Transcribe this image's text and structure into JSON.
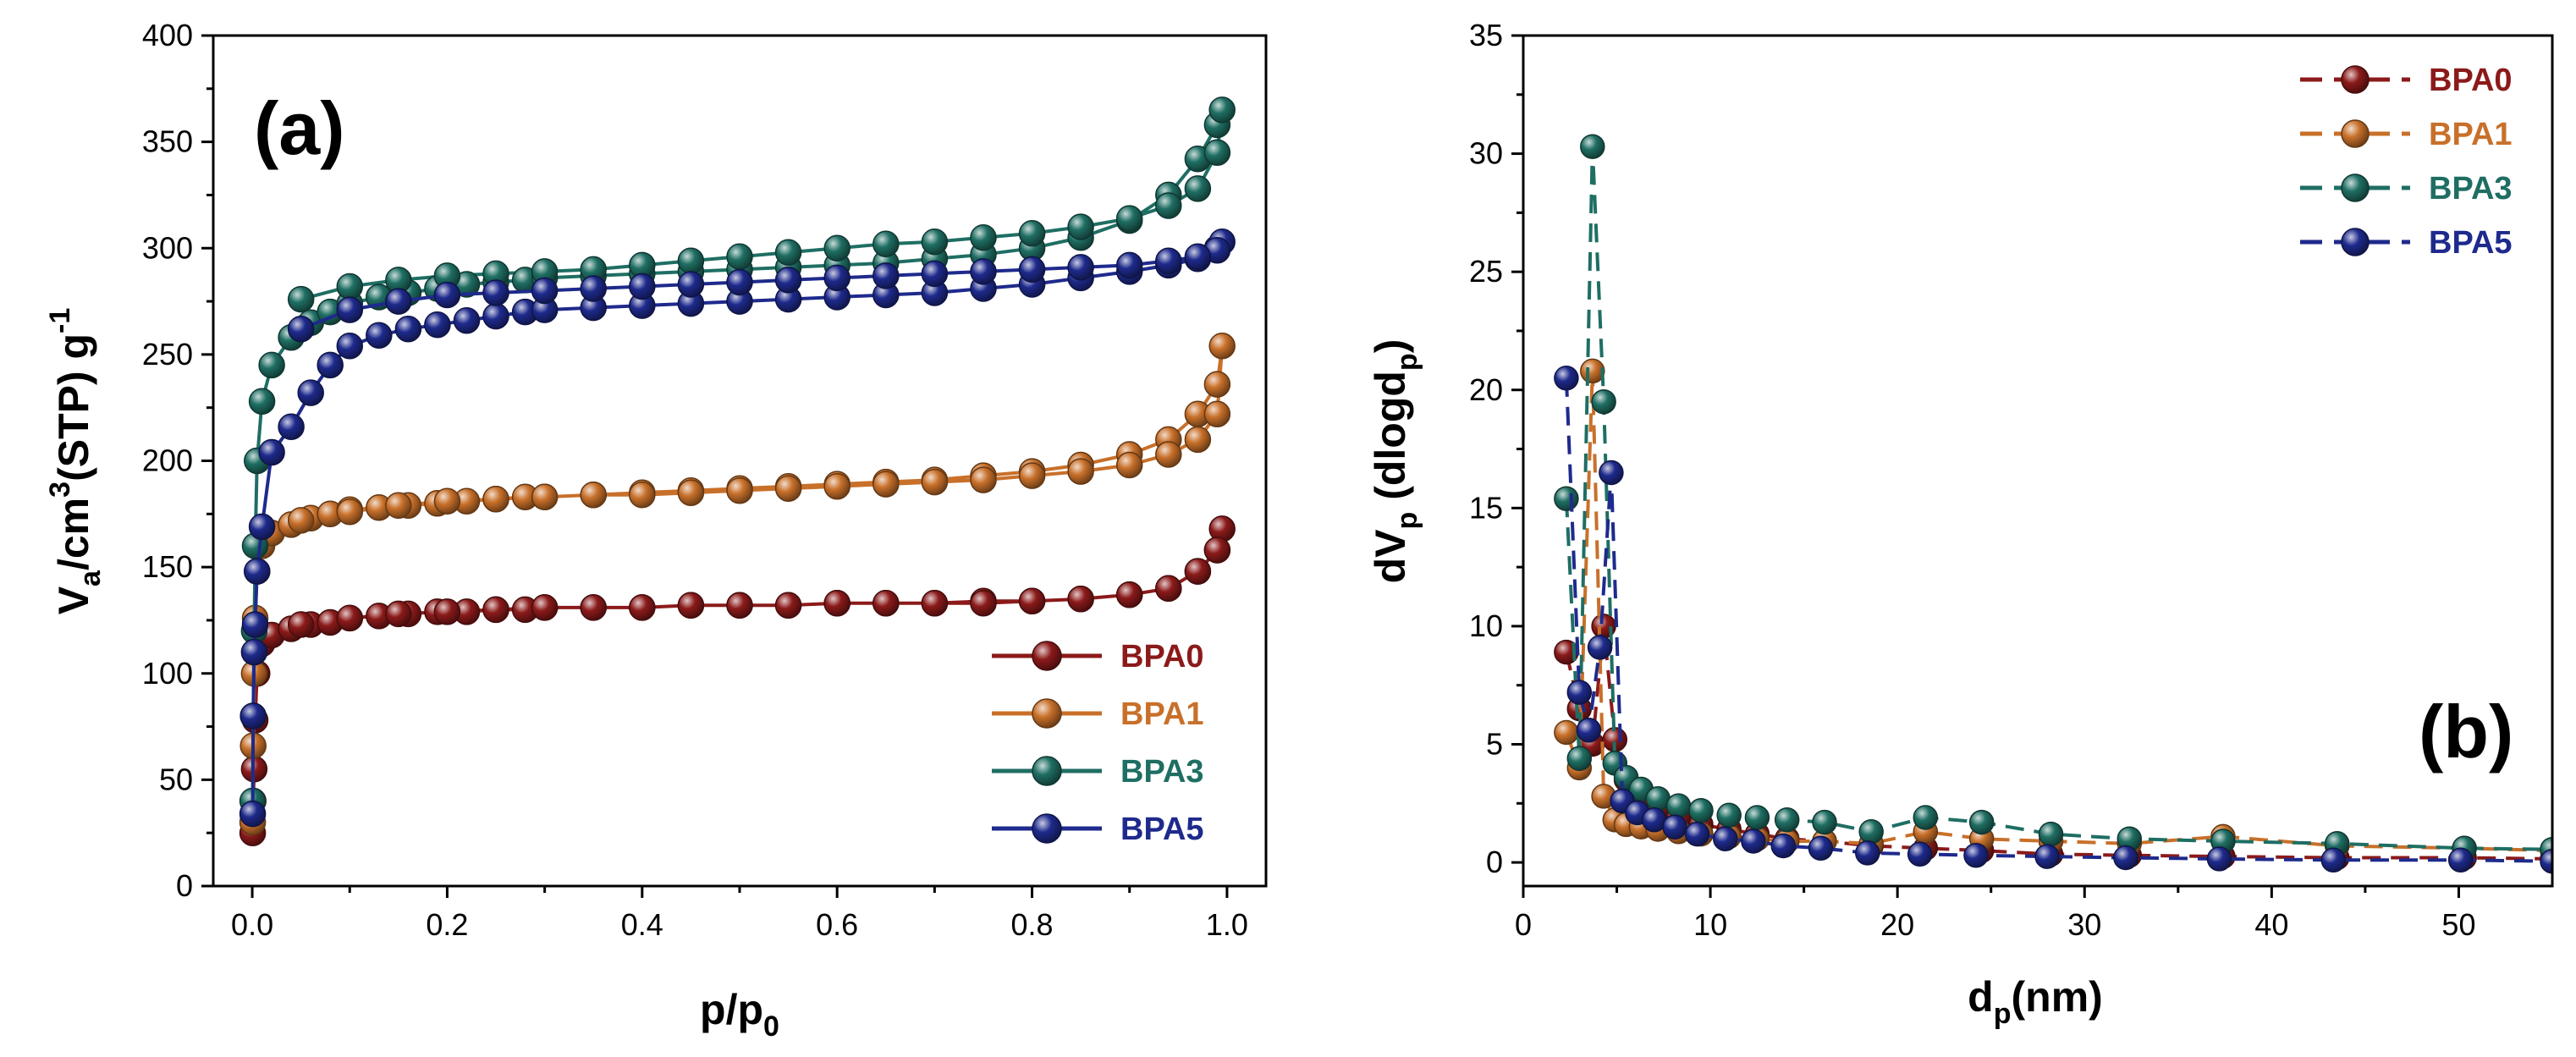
{
  "chart_data": [
    {
      "type": "line",
      "panel_label": "(a)",
      "xlabel": {
        "main": "p/p",
        "sub": "0"
      },
      "ylabel": {
        "p1": "V",
        "sub": "a",
        "p2": "/cm",
        "sup": "3",
        "p3": "(STP) g",
        "sup2": "-1"
      },
      "xlim": [
        -0.04,
        1.04
      ],
      "ylim": [
        0,
        400
      ],
      "xticks": [
        0.0,
        0.2,
        0.4,
        0.6,
        0.8,
        1.0
      ],
      "xtick_labels": [
        "0.0",
        "0.2",
        "0.4",
        "0.6",
        "0.8",
        "1.0"
      ],
      "yticks": [
        0,
        50,
        100,
        150,
        200,
        250,
        300,
        350,
        400
      ],
      "ytick_labels": [
        "0",
        "50",
        "100",
        "150",
        "200",
        "250",
        "300",
        "350",
        "400"
      ],
      "legend_position": "lower-right",
      "series": [
        {
          "name": "BPA0",
          "color": "#8B1A1A",
          "x": [
            0.0005,
            0.001,
            0.002,
            0.003,
            0.005,
            0.01,
            0.02,
            0.04,
            0.06,
            0.08,
            0.1,
            0.13,
            0.16,
            0.19,
            0.22,
            0.25,
            0.28,
            0.3,
            0.35,
            0.4,
            0.45,
            0.5,
            0.55,
            0.6,
            0.65,
            0.7,
            0.75,
            0.8,
            0.85,
            0.9,
            0.94,
            0.97,
            0.99,
            0.995,
            0.99,
            0.97,
            0.94,
            0.9,
            0.85,
            0.8,
            0.75,
            0.7,
            0.65,
            0.6,
            0.55,
            0.5,
            0.45,
            0.4,
            0.35,
            0.3,
            0.25,
            0.2,
            0.15,
            0.1,
            0.05
          ],
          "y": [
            25,
            40,
            55,
            78,
            100,
            114,
            118,
            121,
            123,
            124,
            126,
            127,
            128,
            129,
            129,
            130,
            130,
            131,
            131,
            131,
            132,
            132,
            132,
            133,
            133,
            133,
            134,
            134,
            135,
            137,
            140,
            148,
            158,
            168,
            158,
            148,
            140,
            137,
            135,
            134,
            133,
            133,
            133,
            133,
            132,
            132,
            132,
            131,
            131,
            131,
            130,
            129,
            128,
            126,
            123
          ]
        },
        {
          "name": "BPA1",
          "color": "#C8702A",
          "x": [
            0.0005,
            0.001,
            0.002,
            0.003,
            0.005,
            0.01,
            0.02,
            0.04,
            0.06,
            0.08,
            0.1,
            0.13,
            0.16,
            0.19,
            0.22,
            0.25,
            0.28,
            0.3,
            0.35,
            0.4,
            0.45,
            0.5,
            0.55,
            0.6,
            0.65,
            0.7,
            0.75,
            0.8,
            0.85,
            0.9,
            0.94,
            0.97,
            0.99,
            0.995,
            0.99,
            0.97,
            0.94,
            0.9,
            0.85,
            0.8,
            0.75,
            0.7,
            0.65,
            0.6,
            0.55,
            0.5,
            0.45,
            0.4,
            0.35,
            0.3,
            0.25,
            0.2,
            0.15,
            0.1,
            0.05
          ],
          "y": [
            30,
            66,
            100,
            126,
            148,
            160,
            166,
            170,
            173,
            175,
            177,
            178,
            179,
            180,
            181,
            182,
            183,
            183,
            184,
            185,
            186,
            187,
            188,
            189,
            190,
            191,
            193,
            195,
            198,
            203,
            210,
            222,
            236,
            254,
            222,
            210,
            203,
            198,
            195,
            193,
            191,
            190,
            189,
            188,
            187,
            186,
            185,
            184,
            184,
            183,
            182,
            181,
            179,
            176,
            172
          ]
        },
        {
          "name": "BPA3",
          "color": "#1F6E63",
          "x": [
            0.0005,
            0.001,
            0.002,
            0.003,
            0.005,
            0.01,
            0.02,
            0.04,
            0.06,
            0.08,
            0.1,
            0.13,
            0.16,
            0.19,
            0.22,
            0.25,
            0.28,
            0.3,
            0.35,
            0.4,
            0.45,
            0.5,
            0.55,
            0.6,
            0.65,
            0.7,
            0.75,
            0.8,
            0.85,
            0.9,
            0.94,
            0.97,
            0.99,
            0.995,
            0.99,
            0.97,
            0.94,
            0.9,
            0.85,
            0.8,
            0.75,
            0.7,
            0.65,
            0.6,
            0.55,
            0.5,
            0.45,
            0.4,
            0.35,
            0.3,
            0.25,
            0.2,
            0.15,
            0.1,
            0.05
          ],
          "y": [
            40,
            80,
            120,
            160,
            200,
            228,
            245,
            258,
            265,
            270,
            274,
            277,
            279,
            281,
            283,
            284,
            285,
            286,
            287,
            288,
            289,
            290,
            291,
            292,
            293,
            295,
            297,
            300,
            305,
            313,
            325,
            342,
            358,
            365,
            345,
            328,
            320,
            314,
            310,
            307,
            305,
            303,
            302,
            300,
            298,
            296,
            294,
            292,
            290,
            289,
            288,
            287,
            285,
            282,
            276
          ]
        },
        {
          "name": "BPA5",
          "color": "#1E2A8C",
          "x": [
            0.0005,
            0.001,
            0.002,
            0.003,
            0.005,
            0.01,
            0.02,
            0.04,
            0.06,
            0.08,
            0.1,
            0.13,
            0.16,
            0.19,
            0.22,
            0.25,
            0.28,
            0.3,
            0.35,
            0.4,
            0.45,
            0.5,
            0.55,
            0.6,
            0.65,
            0.7,
            0.75,
            0.8,
            0.85,
            0.9,
            0.94,
            0.97,
            0.99,
            0.995,
            0.99,
            0.97,
            0.94,
            0.9,
            0.85,
            0.8,
            0.75,
            0.7,
            0.65,
            0.6,
            0.55,
            0.5,
            0.45,
            0.4,
            0.35,
            0.3,
            0.25,
            0.2,
            0.15,
            0.1,
            0.05
          ],
          "y": [
            34,
            80,
            110,
            123,
            148,
            169,
            204,
            216,
            232,
            245,
            254,
            259,
            262,
            264,
            266,
            268,
            270,
            271,
            272,
            273,
            274,
            275,
            276,
            277,
            278,
            279,
            281,
            283,
            286,
            289,
            292,
            295,
            300,
            303,
            299,
            296,
            294,
            292,
            291,
            290,
            289,
            288,
            287,
            286,
            285,
            284,
            283,
            282,
            281,
            280,
            279,
            278,
            275,
            271,
            262
          ]
        }
      ]
    },
    {
      "type": "line",
      "panel_label": "(b)",
      "xlabel": {
        "main": "d",
        "sub": "p",
        "rest": "(nm)"
      },
      "ylabel": {
        "p1": "dV",
        "sub": "p",
        "p2": " (dlogd",
        "sub2": "p",
        "p3": ")"
      },
      "xlim": [
        0,
        55
      ],
      "ylim": [
        -1,
        35
      ],
      "xticks": [
        0,
        10,
        20,
        30,
        40,
        50
      ],
      "xtick_labels": [
        "0",
        "10",
        "20",
        "30",
        "40",
        "50"
      ],
      "yticks": [
        0,
        5,
        10,
        15,
        20,
        25,
        30,
        35
      ],
      "ytick_labels": [
        "0",
        "5",
        "10",
        "15",
        "20",
        "25",
        "30",
        "35"
      ],
      "legend_position": "top-right",
      "series": [
        {
          "name": "BPA0",
          "color": "#8B1A1A",
          "x": [
            2.3,
            3.0,
            3.7,
            4.3,
            4.9,
            5.5,
            6.3,
            7.2,
            8.3,
            9.5,
            11.0,
            12.5,
            14.1,
            16.1,
            18.6,
            21.5,
            24.5,
            28.2,
            32.4,
            37.4,
            43.5,
            50.3,
            55
          ],
          "y": [
            8.9,
            6.5,
            5.0,
            10.0,
            5.2,
            3.5,
            2.8,
            2.3,
            1.9,
            1.6,
            1.4,
            1.2,
            1.0,
            0.9,
            0.7,
            0.6,
            0.5,
            0.35,
            0.3,
            0.25,
            0.2,
            0.2,
            0.15
          ]
        },
        {
          "name": "BPA1",
          "color": "#C8702A",
          "x": [
            2.3,
            3.0,
            3.7,
            4.3,
            4.9,
            5.5,
            6.3,
            7.2,
            8.3,
            9.5,
            11.0,
            12.5,
            14.1,
            16.1,
            18.6,
            21.5,
            24.5,
            28.2,
            32.4,
            37.4,
            43.5,
            50.3,
            55
          ],
          "y": [
            5.5,
            4.0,
            20.8,
            2.8,
            1.8,
            1.6,
            1.5,
            1.4,
            1.3,
            1.2,
            1.1,
            1.0,
            0.9,
            0.9,
            0.8,
            1.3,
            1.0,
            0.9,
            0.8,
            1.1,
            0.7,
            0.6,
            0.5
          ]
        },
        {
          "name": "BPA3",
          "color": "#1F6E63",
          "x": [
            2.3,
            3.0,
            3.7,
            4.3,
            4.9,
            5.5,
            6.3,
            7.2,
            8.3,
            9.5,
            11.0,
            12.5,
            14.1,
            16.1,
            18.6,
            21.5,
            24.5,
            28.2,
            32.4,
            37.4,
            43.5,
            50.3,
            55
          ],
          "y": [
            15.4,
            4.4,
            30.3,
            19.5,
            4.2,
            3.6,
            3.1,
            2.7,
            2.4,
            2.2,
            2.0,
            1.9,
            1.8,
            1.7,
            1.3,
            1.9,
            1.7,
            1.2,
            1.0,
            0.9,
            0.8,
            0.6,
            0.55
          ]
        },
        {
          "name": "BPA5",
          "color": "#1E2A8C",
          "x": [
            2.3,
            3.0,
            3.5,
            4.1,
            4.7,
            5.3,
            6.1,
            7.0,
            8.1,
            9.3,
            10.8,
            12.3,
            13.9,
            15.9,
            18.4,
            21.2,
            24.2,
            28.0,
            32.2,
            37.2,
            43.3,
            50.1,
            55
          ],
          "y": [
            20.5,
            7.2,
            5.6,
            9.1,
            16.5,
            2.6,
            2.1,
            1.8,
            1.5,
            1.2,
            1.0,
            0.9,
            0.7,
            0.6,
            0.4,
            0.35,
            0.3,
            0.25,
            0.2,
            0.15,
            0.1,
            0.1,
            0.05
          ]
        }
      ]
    }
  ]
}
